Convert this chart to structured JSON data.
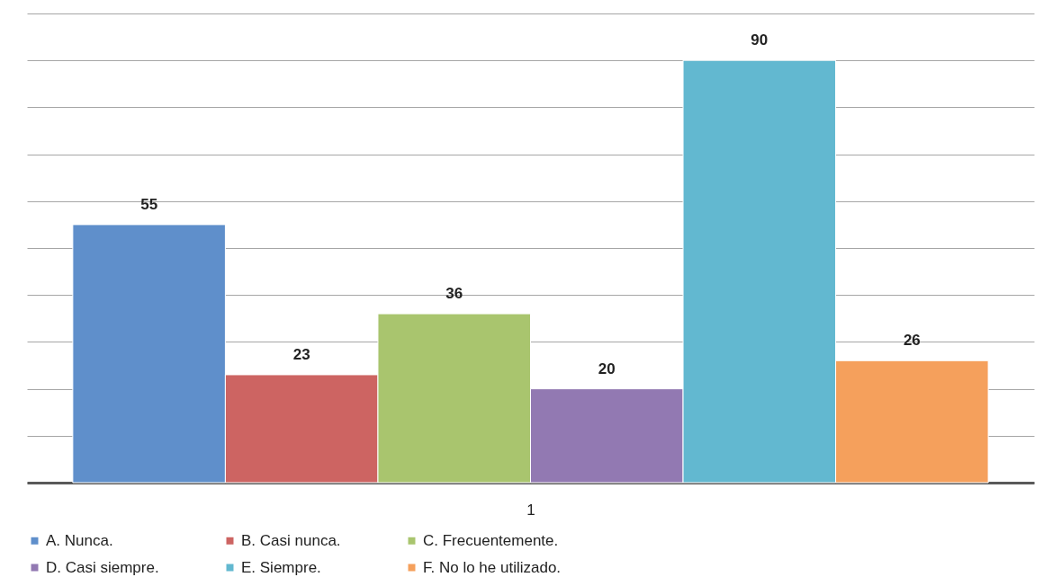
{
  "chart_data": {
    "type": "bar",
    "categories": [
      null
    ],
    "xlabel": "1",
    "series": [
      {
        "name": "A. Nunca.",
        "color": "#5f8fcb",
        "values": [
          55
        ]
      },
      {
        "name": "B. Casi nunca.",
        "color": "#cd6462",
        "values": [
          23
        ]
      },
      {
        "name": "C. Frecuentemente.",
        "color": "#a9c56e",
        "values": [
          36
        ]
      },
      {
        "name": "D. Casi siempre.",
        "color": "#9279b2",
        "values": [
          20
        ]
      },
      {
        "name": "E. Siempre.",
        "color": "#62b8d0",
        "values": [
          90
        ]
      },
      {
        "name": "F. No lo he utilizado.",
        "color": "#f5a05c",
        "values": [
          26
        ]
      }
    ],
    "ylim": [
      0,
      100
    ],
    "yticks": [
      {
        "value": 0,
        "label": null
      },
      {
        "value": 10,
        "label": null
      },
      {
        "value": 20,
        "label": null
      },
      {
        "value": 30,
        "label": null
      },
      {
        "value": 40,
        "label": null
      },
      {
        "value": 50,
        "label": null
      },
      {
        "value": 60,
        "label": null
      },
      {
        "value": 70,
        "label": null
      },
      {
        "value": 80,
        "label": null
      },
      {
        "value": 90,
        "label": null
      },
      {
        "value": 100,
        "label": null
      }
    ],
    "grid": "y",
    "tick_labels": false,
    "legend": "bottom",
    "data_labels": true
  }
}
